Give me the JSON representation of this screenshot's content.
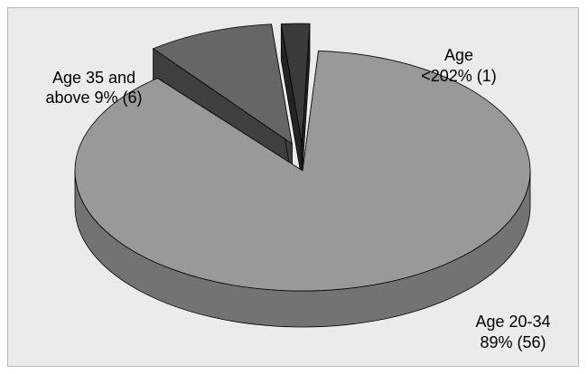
{
  "chart_data": {
    "type": "pie",
    "style": "3d-exploded",
    "slices": [
      {
        "name": "Age 20-34",
        "percent": 89,
        "count": 56,
        "label_lines": [
          "Age 20-34",
          "89% (56)"
        ],
        "color": "#999999"
      },
      {
        "name": "Age 35 and above",
        "percent": 9,
        "count": 6,
        "label_lines": [
          "Age 35 and",
          "above 9% (6)"
        ],
        "color": "#666666"
      },
      {
        "name": "Age <20",
        "percent": 2,
        "count": 1,
        "label_lines": [
          "Age",
          "<202% (1)"
        ],
        "color": "#3a3a3a"
      }
    ],
    "legend": "none",
    "background": "#ebebeb"
  }
}
